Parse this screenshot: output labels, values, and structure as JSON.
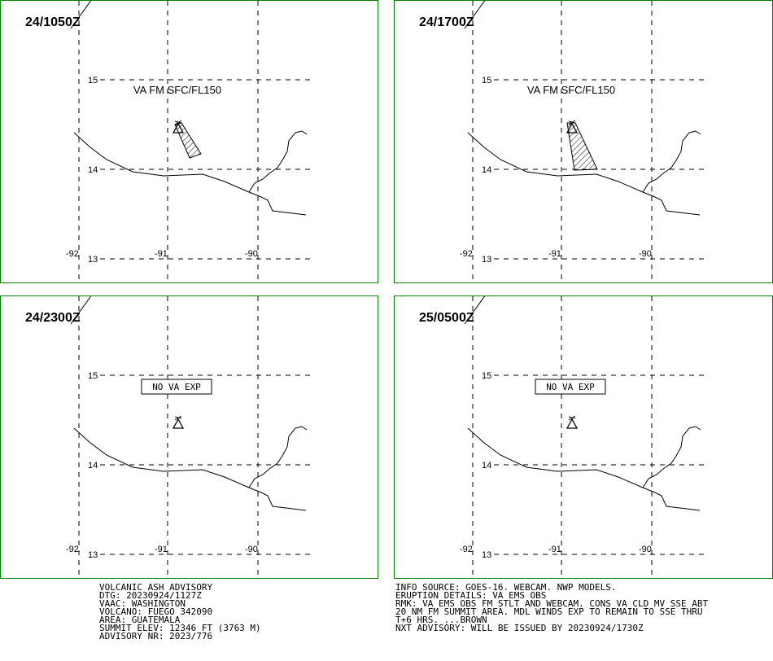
{
  "panels": [
    {
      "time": "24/1050Z",
      "label": "VA FM SFC/FL150",
      "boxed": false,
      "ash_polygon": "a"
    },
    {
      "time": "24/1700Z",
      "label": "VA FM SFC/FL150",
      "boxed": false,
      "ash_polygon": "b"
    },
    {
      "time": "24/2300Z",
      "label": "NO VA EXP",
      "boxed": true,
      "ash_polygon": null
    },
    {
      "time": "25/0500Z",
      "label": "NO VA EXP",
      "boxed": true,
      "ash_polygon": null
    }
  ],
  "grid": {
    "lat_labels": [
      "15",
      "14",
      "13"
    ],
    "lon_labels": [
      "-92",
      "-91",
      "-90"
    ]
  },
  "colors": {
    "panel_border": "#008000",
    "line": "#000000"
  },
  "advisory_left": [
    "VOLCANIC ASH ADVISORY",
    "DTG: 20230924/1127Z",
    "VAAC: WASHINGTON",
    "VOLCANO: FUEGO 342090",
    "AREA: GUATEMALA",
    "SUMMIT ELEV: 12346 FT (3763 M)",
    "ADVISORY NR: 2023/776"
  ],
  "advisory_right": [
    "INFO SOURCE: GOES-16. WEBCAM. NWP MODELS.",
    "ERUPTION DETAILS: VA EMS OBS",
    "RMK: VA EMS OBS FM STLT AND WEBCAM. CONS VA CLD MV SSE ABT",
    "20 NM FM SUMMIT AREA. MDL WINDS EXP TO REMAIN TO SSE THRU",
    "T+6 HRS. ...BROWN",
    "NXT ADVISORY: WILL BE ISSUED BY 20230924/1730Z"
  ]
}
